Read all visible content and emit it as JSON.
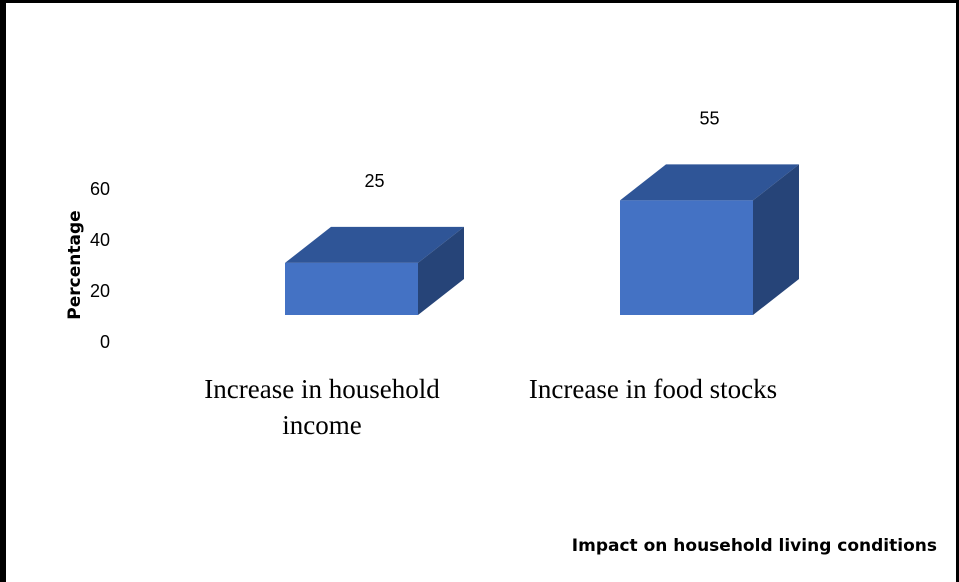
{
  "chart_data": {
    "type": "bar",
    "style": "3d",
    "categories": [
      [
        "Increase in household",
        "income"
      ],
      [
        "Increase in food stocks"
      ]
    ],
    "values": [
      25,
      55
    ],
    "data_labels": [
      "25",
      "55"
    ],
    "ylabel": "Percentage",
    "xlabel": "Impact  on household living conditions",
    "yticks": [
      "0",
      "20",
      "40",
      "60"
    ],
    "ylim": [
      0,
      60
    ],
    "grid": false,
    "colors": {
      "front": "#4472C4",
      "top": "#2F5597",
      "side": "#264478"
    }
  }
}
